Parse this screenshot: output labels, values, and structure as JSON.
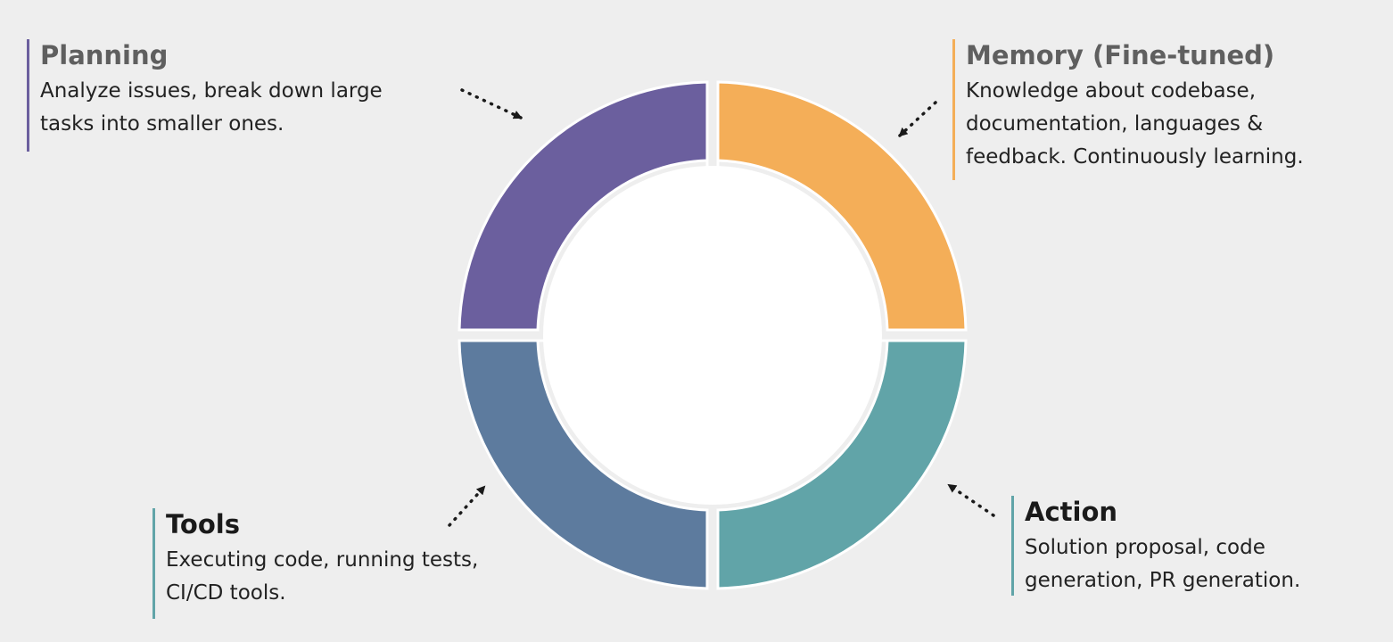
{
  "colors": {
    "background": "#eeeeee",
    "planning": "#6b5f9e",
    "memory": "#f4ae58",
    "tools": "#5d7b9e",
    "action": "#61a4a8",
    "center": "#ffffff",
    "arrow": "#1a1a1a"
  },
  "segments": [
    {
      "id": "planning",
      "quadrant": "top-left"
    },
    {
      "id": "memory",
      "quadrant": "top-right"
    },
    {
      "id": "tools",
      "quadrant": "bottom-left"
    },
    {
      "id": "action",
      "quadrant": "bottom-right"
    }
  ],
  "callouts": {
    "planning": {
      "title": "Planning",
      "desc_lines": [
        "Analyze issues, break down large",
        "tasks into smaller ones."
      ]
    },
    "memory": {
      "title": "Memory (Fine-tuned)",
      "desc_lines": [
        "Knowledge about codebase,",
        "documentation, languages &",
        "feedback. Continuously learning."
      ]
    },
    "tools": {
      "title": "Tools",
      "desc_lines": [
        "Executing code, running tests,",
        "CI/CD tools."
      ]
    },
    "action": {
      "title": "Action",
      "desc_lines": [
        "Solution proposal, code",
        "generation, PR generation."
      ]
    }
  }
}
